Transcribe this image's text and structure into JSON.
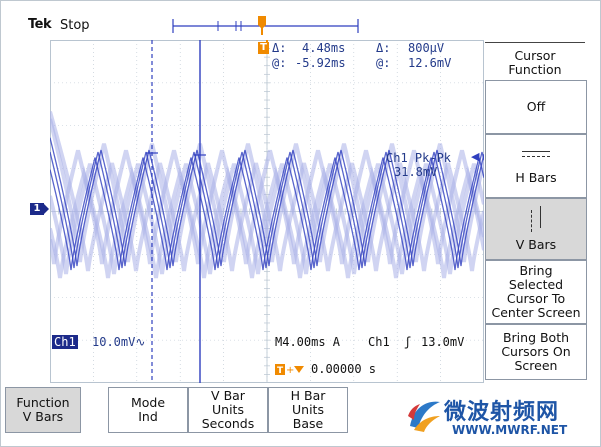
{
  "header": {
    "brand": "Tek",
    "status": "Stop"
  },
  "measurements": {
    "delta_time_label": "Δ:",
    "delta_time": "4.48ms",
    "at_time_label": "@:",
    "at_time": "-5.92ms",
    "delta_volt_label": "Δ:",
    "delta_volt": "800μV",
    "at_volt_label": "@:",
    "at_volt": "12.6mV"
  },
  "readout": {
    "pk_pk_label": "Ch1 Pk-Pk",
    "pk_pk_value": "31.8mV",
    "ch1_badge": "Ch1",
    "ch1_scale": "10.0mV∿",
    "timebase": "M4.00ms A",
    "trigger_channel": "Ch1",
    "trigger_slope": "ʃ",
    "trigger_level": "13.0mV",
    "trigger_position": "0.00000 s",
    "channel_marker": "1",
    "trigger_marker": "T"
  },
  "side_menu": {
    "title_line1": "Cursor",
    "title_line2": "Function",
    "items": [
      {
        "line1": "Off",
        "line2": "",
        "line3": ""
      },
      {
        "line1": "H Bars",
        "line2": "",
        "line3": ""
      },
      {
        "line1": "V Bars",
        "line2": "",
        "line3": ""
      },
      {
        "line1": "Bring",
        "line2": "Selected",
        "line3": "Cursor To",
        "line4": "Center Screen"
      },
      {
        "line1": "Bring Both",
        "line2": "Cursors On",
        "line3": "Screen"
      }
    ]
  },
  "bottom_menu": [
    {
      "line1": "Function",
      "line2": "V Bars",
      "line3": ""
    },
    {
      "line1": "Mode",
      "line2": "Ind",
      "line3": ""
    },
    {
      "line1": "V Bar",
      "line2": "Units",
      "line3": "Seconds"
    },
    {
      "line1": "H Bar",
      "line2": "Units",
      "line3": "Base"
    }
  ],
  "watermark": {
    "title": "微波射频网",
    "url": "WWW.MWRF.NET"
  },
  "colors": {
    "trace": "#2f3fbf",
    "trace_faint": "#a9b0e8",
    "grid": "#b8c4d0",
    "text": "#233a8a",
    "trigger": "#f08a00"
  }
}
